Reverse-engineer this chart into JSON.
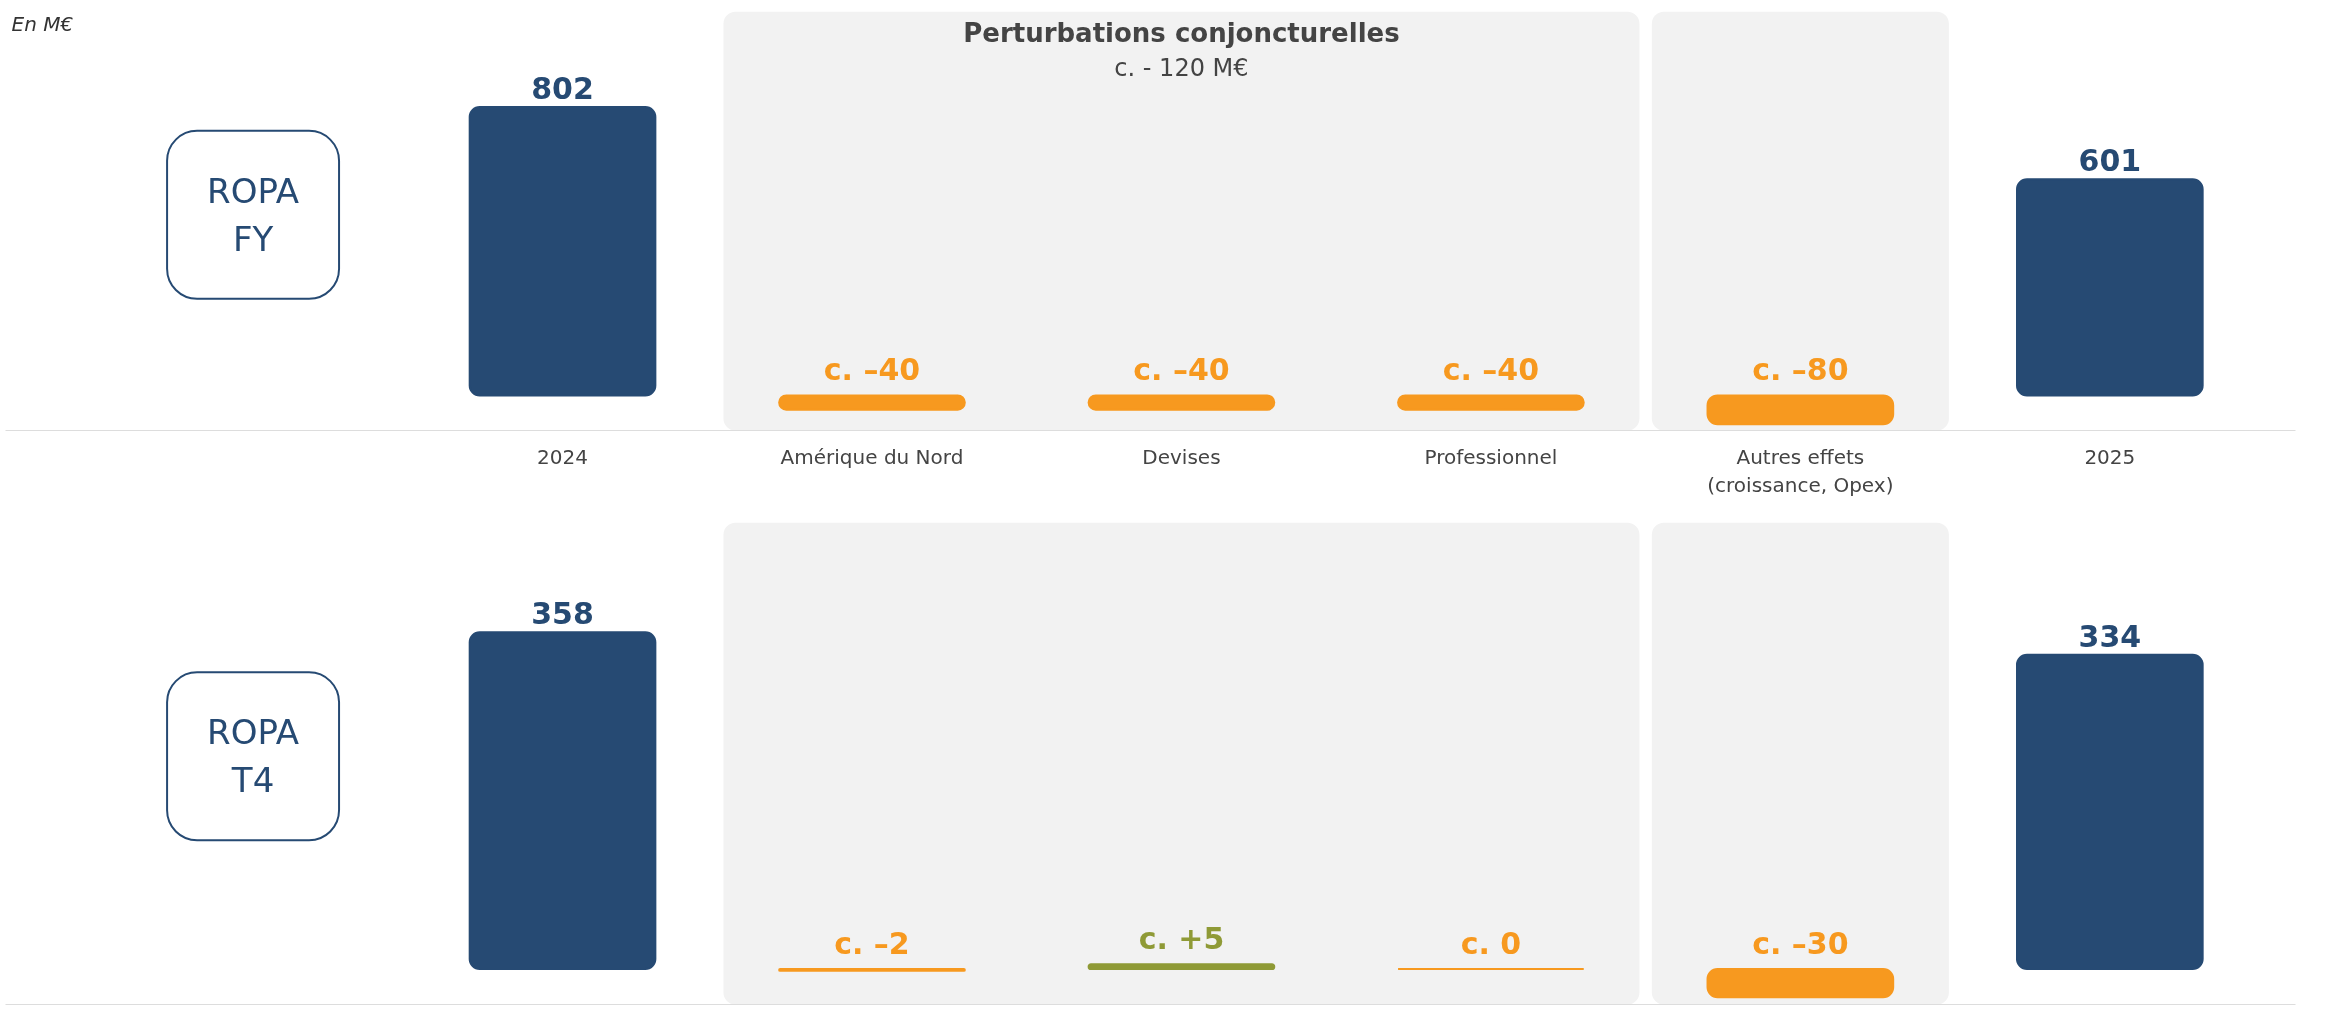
{
  "chart_data": [
    {
      "type": "bar",
      "categories": [
        "2024",
        "Amérique du Nord",
        "Devises",
        "Professionnel",
        "Autres effets (croissance, Opex)",
        "2025"
      ],
      "values": [
        802,
        -40,
        -40,
        -40,
        -80,
        601
      ],
      "colors": [
        "#264a73",
        "#f7991f",
        "#f7991f",
        "#f7991f",
        "#f7991f",
        "#264a73"
      ],
      "value_labels": [
        "802",
        "c. –40",
        "c. –40",
        "c. –40",
        "c. –80",
        "601"
      ],
      "ylabel": "ROPA FY",
      "annotations": [
        "En M€"
      ],
      "bands": [
        {
          "axis": "x",
          "from": "Amérique du Nord",
          "to": "Professionnel",
          "label": "Perturbations conjoncturelles\nc. - 120 M€",
          "color": "#f2f2f2"
        },
        {
          "axis": "x",
          "from": "Autres effets (croissance, Opex)",
          "to": "Autres effets (croissance, Opex)",
          "color": "#f2f2f2"
        }
      ]
    },
    {
      "type": "bar",
      "categories": [
        "2024",
        "Amérique du Nord",
        "Devises",
        "Professionnel",
        "Autres effets (croissance, Opex)",
        "2025"
      ],
      "values": [
        358,
        -2,
        5,
        0,
        -30,
        334
      ],
      "colors": [
        "#264a73",
        "#f7991f",
        "#8f9a36",
        "#f7991f",
        "#f7991f",
        "#264a73"
      ],
      "value_labels": [
        "358",
        "c. –2",
        "c. +5",
        "c. 0",
        "c. –30",
        "334"
      ],
      "ylabel": "ROPA T4",
      "tick_labels": false,
      "bands": [
        {
          "axis": "x",
          "from": "Amérique du Nord",
          "to": "Professionnel",
          "color": "#f2f2f2"
        },
        {
          "axis": "x",
          "from": "Autres effets (croissance, Opex)",
          "to": "Autres effets (croissance, Opex)",
          "color": "#f2f2f2"
        }
      ]
    }
  ]
}
